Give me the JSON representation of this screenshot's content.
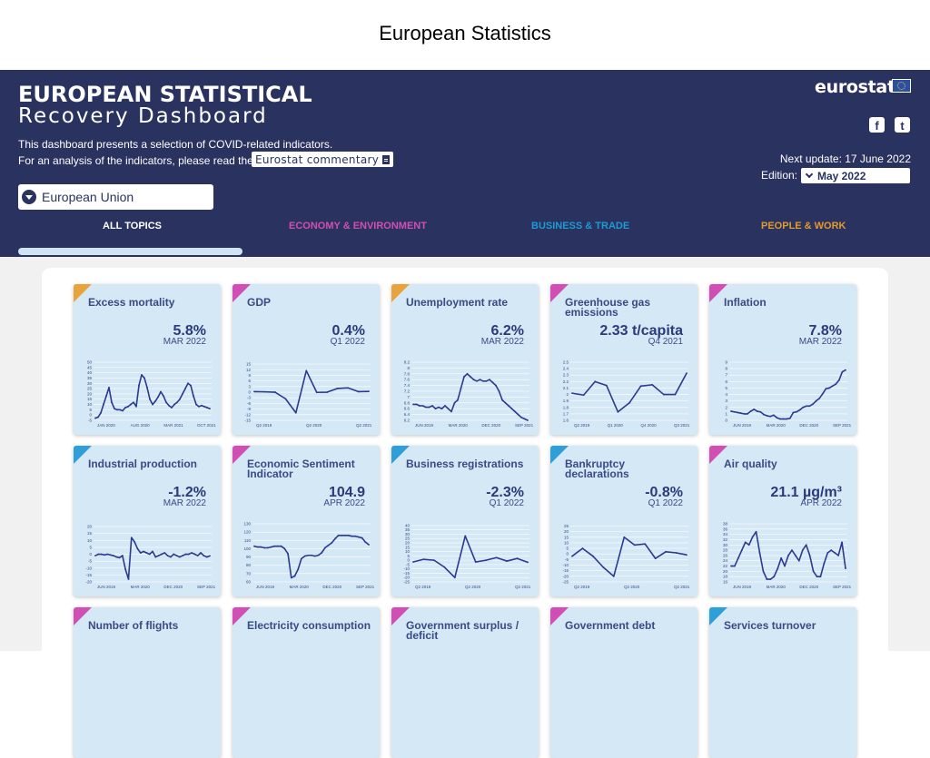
{
  "page_title": "European Statistics",
  "header": {
    "title_line1": "EUROPEAN STATISTICAL",
    "title_line2": "Recovery Dashboard",
    "intro_line1": "This dashboard presents a selection of COVID-related indicators.",
    "intro_line2": "For an analysis of the indicators, please read the",
    "commentary_label": "Eurostat commentary",
    "region_selected": "European Union",
    "logo_text": "eurostat",
    "next_update": "Next update: 17 June 2022",
    "edition_label": "Edition:",
    "edition_selected": "May 2022",
    "social": {
      "facebook": "f",
      "twitter": "t"
    }
  },
  "nav": {
    "tabs": [
      {
        "label": "ALL TOPICS",
        "color": "#ffffff"
      },
      {
        "label": "ECONOMY & ENVIRONMENT",
        "color": "#d14fb4"
      },
      {
        "label": "BUSINESS & TRADE",
        "color": "#1e9ad6"
      },
      {
        "label": "PEOPLE & WORK",
        "color": "#e39a2d"
      }
    ]
  },
  "category_colors": {
    "people": "#e8a33d",
    "economy": "#d14fb4",
    "business": "#2e9fd9"
  },
  "cards": [
    {
      "title": "Excess mortality",
      "value": "5.8%",
      "period": "MAR 2022",
      "category": "people",
      "x_labels": [
        "JAN 2020",
        "AUG 2020",
        "MAR 2021",
        "OCT 2021"
      ],
      "y_labels": [
        "50",
        "45",
        "40",
        "35",
        "30",
        "25",
        "20",
        "15",
        "10",
        "5",
        "0",
        "-5"
      ],
      "y_range": [
        -5,
        50
      ],
      "series": [
        -3,
        -2,
        2,
        10,
        18,
        26,
        12,
        6,
        5,
        5,
        4,
        7,
        8,
        10,
        12,
        8,
        28,
        38,
        35,
        26,
        15,
        10,
        13,
        17,
        22,
        18,
        12,
        9,
        7,
        10,
        12,
        15,
        20,
        25,
        30,
        28,
        18,
        10,
        8,
        9,
        8,
        7,
        6
      ]
    },
    {
      "title": "GDP",
      "value": "0.4%",
      "period": "Q1 2022",
      "category": "economy",
      "x_labels": [
        "Q2 2019",
        "Q2 2020",
        "Q2 2021"
      ],
      "y_labels": [
        "15",
        "12",
        "9",
        "6",
        "3",
        "0",
        "-3",
        "-6",
        "-9",
        "-12",
        "-15"
      ],
      "y_range": [
        -15,
        16
      ],
      "series": [
        0.3,
        0.2,
        0.0,
        -3.5,
        -11.0,
        11.5,
        -0.1,
        0.0,
        2.0,
        2.3,
        0.3,
        0.4
      ]
    },
    {
      "title": "Unemployment rate",
      "value": "6.2%",
      "period": "MAR 2022",
      "category": "people",
      "x_labels": [
        "JUN 2019",
        "MAR 2020",
        "DEC 2020",
        "SEP 2021"
      ],
      "y_labels": [
        "8.2",
        "8",
        "7.8",
        "7.6",
        "7.4",
        "7.2",
        "7",
        "6.8",
        "6.6",
        "6.4",
        "6.2"
      ],
      "y_range": [
        6.2,
        8.2
      ],
      "series": [
        6.75,
        6.75,
        6.7,
        6.7,
        6.65,
        6.65,
        6.7,
        6.6,
        6.65,
        6.6,
        6.7,
        6.6,
        6.5,
        6.8,
        6.9,
        7.3,
        7.7,
        7.8,
        7.7,
        7.6,
        7.55,
        7.6,
        7.55,
        7.55,
        7.6,
        7.5,
        7.4,
        7.2,
        6.9,
        6.8,
        6.7,
        6.6,
        6.5,
        6.4,
        6.3,
        6.25,
        6.2
      ]
    },
    {
      "title": "Greenhouse gas emissions",
      "value": "2.33 t/capita",
      "period": "Q4 2021",
      "category": "economy",
      "x_labels": [
        "Q2 2019",
        "Q1 2020",
        "Q4 2020",
        "Q3 2021"
      ],
      "y_labels": [
        "2.5",
        "2.4",
        "2.3",
        "2.2",
        "2.1",
        "2",
        "1.9",
        "1.8",
        "1.7",
        "1.6"
      ],
      "y_range": [
        1.6,
        2.5
      ],
      "series": [
        2.02,
        1.99,
        2.2,
        2.14,
        1.73,
        1.87,
        2.13,
        2.15,
        2.0,
        2.0,
        2.33
      ]
    },
    {
      "title": "Inflation",
      "value": "7.8%",
      "period": "MAR 2022",
      "category": "economy",
      "x_labels": [
        "JUN 2019",
        "MAR 2020",
        "DEC 2020",
        "SEP 2021"
      ],
      "y_labels": [
        "9",
        "8",
        "7",
        "6",
        "5",
        "4",
        "3",
        "2",
        "1",
        "0"
      ],
      "y_range": [
        0,
        9
      ],
      "series": [
        1.4,
        1.3,
        1.2,
        1.1,
        1.0,
        1.0,
        1.4,
        1.7,
        1.4,
        1.3,
        0.9,
        0.7,
        0.6,
        0.8,
        0.4,
        0.2,
        0.2,
        0.2,
        0.3,
        1.2,
        1.3,
        1.6,
        2.0,
        2.2,
        2.2,
        2.5,
        3.0,
        3.4,
        4.1,
        4.9,
        5.0,
        5.3,
        5.6,
        6.2,
        7.5,
        7.8
      ]
    },
    {
      "title": "Industrial production",
      "value": "-1.2%",
      "period": "MAR 2022",
      "category": "business",
      "x_labels": [
        "JUN 2019",
        "MAR 2020",
        "DEC 2020",
        "SEP 2021"
      ],
      "y_labels": [
        "20",
        "15",
        "10",
        "5",
        "0",
        "-5",
        "-10",
        "-15",
        "-20"
      ],
      "y_range": [
        -20,
        22
      ],
      "series": [
        -1,
        0,
        0,
        -0.5,
        0,
        -0.5,
        -1,
        -2,
        -2.5,
        -1,
        -11,
        -18,
        12,
        9,
        4,
        1,
        2,
        1,
        0,
        2,
        -2,
        -1,
        0,
        1,
        -1,
        -2,
        0,
        -1,
        -2,
        -1,
        0,
        0,
        1,
        0,
        -1,
        1,
        -1,
        -2,
        -1.2
      ]
    },
    {
      "title": "Economic Sentiment Indicator",
      "value": "104.9",
      "period": "APR 2022",
      "category": "economy",
      "x_labels": [
        "JUN 2019",
        "MAR 2020",
        "DEC 2020",
        "SEP 2021"
      ],
      "y_labels": [
        "130",
        "120",
        "110",
        "100",
        "90",
        "80",
        "70",
        "60"
      ],
      "y_range": [
        60,
        130
      ],
      "series": [
        103,
        102,
        102,
        101,
        101,
        102,
        103,
        103,
        103,
        100,
        94,
        65,
        67,
        75,
        88,
        91,
        92,
        92,
        91,
        92,
        95,
        101,
        104,
        107,
        112,
        116,
        116,
        116,
        116,
        115,
        115,
        114,
        113,
        108,
        104.9
      ]
    },
    {
      "title": "Business registrations",
      "value": "-2.3%",
      "period": "Q1 2022",
      "category": "business",
      "x_labels": [
        "Q2 2019",
        "Q2 2020",
        "Q2 2021"
      ],
      "y_labels": [
        "40",
        "35",
        "30",
        "25",
        "20",
        "15",
        "10",
        "5",
        "0",
        "-5",
        "-10",
        "-15",
        "-20",
        "-25"
      ],
      "y_range": [
        -25,
        42
      ],
      "series": [
        -2,
        1,
        0,
        -8,
        -20,
        28,
        -2,
        0,
        3,
        -1,
        2,
        -2.3
      ]
    },
    {
      "title": "Bankruptcy declarations",
      "value": "-0.8%",
      "period": "Q1 2022",
      "category": "business",
      "x_labels": [
        "Q2 2019",
        "Q2 2020",
        "Q2 2021"
      ],
      "y_labels": [
        "25",
        "20",
        "15",
        "10",
        "5",
        "0",
        "-5",
        "-10",
        "-15",
        "-20",
        "-25"
      ],
      "y_range": [
        -25,
        27
      ],
      "series": [
        -2,
        5,
        -2,
        -12,
        -20,
        15,
        8,
        9,
        -4,
        2,
        1,
        -0.8
      ]
    },
    {
      "title": "Air quality",
      "value": "21.1 µg/m³",
      "period": "APR 2022",
      "category": "economy",
      "x_labels": [
        "JUN 2019",
        "MAR 2020",
        "DEC 2020",
        "SEP 2021"
      ],
      "y_labels": [
        "38",
        "36",
        "34",
        "32",
        "30",
        "28",
        "26",
        "24",
        "22",
        "20",
        "18",
        "16"
      ],
      "y_range": [
        16,
        38
      ],
      "series": [
        22,
        22,
        25,
        28,
        31,
        30,
        33,
        35,
        27,
        20,
        17,
        17,
        18,
        21,
        25,
        22,
        26,
        28,
        26,
        24,
        28,
        30,
        26,
        20,
        18,
        18,
        23,
        27,
        28,
        27,
        26,
        31,
        21.1
      ]
    },
    {
      "title": "Number of flights",
      "value": "",
      "period": "",
      "category": "economy"
    },
    {
      "title": "Electricity consumption",
      "value": "",
      "period": "",
      "category": "economy"
    },
    {
      "title": "Government surplus / deficit",
      "value": "",
      "period": "",
      "category": "economy"
    },
    {
      "title": "Government debt",
      "value": "",
      "period": "",
      "category": "economy"
    },
    {
      "title": "Services turnover",
      "value": "",
      "period": "",
      "category": "business"
    }
  ]
}
